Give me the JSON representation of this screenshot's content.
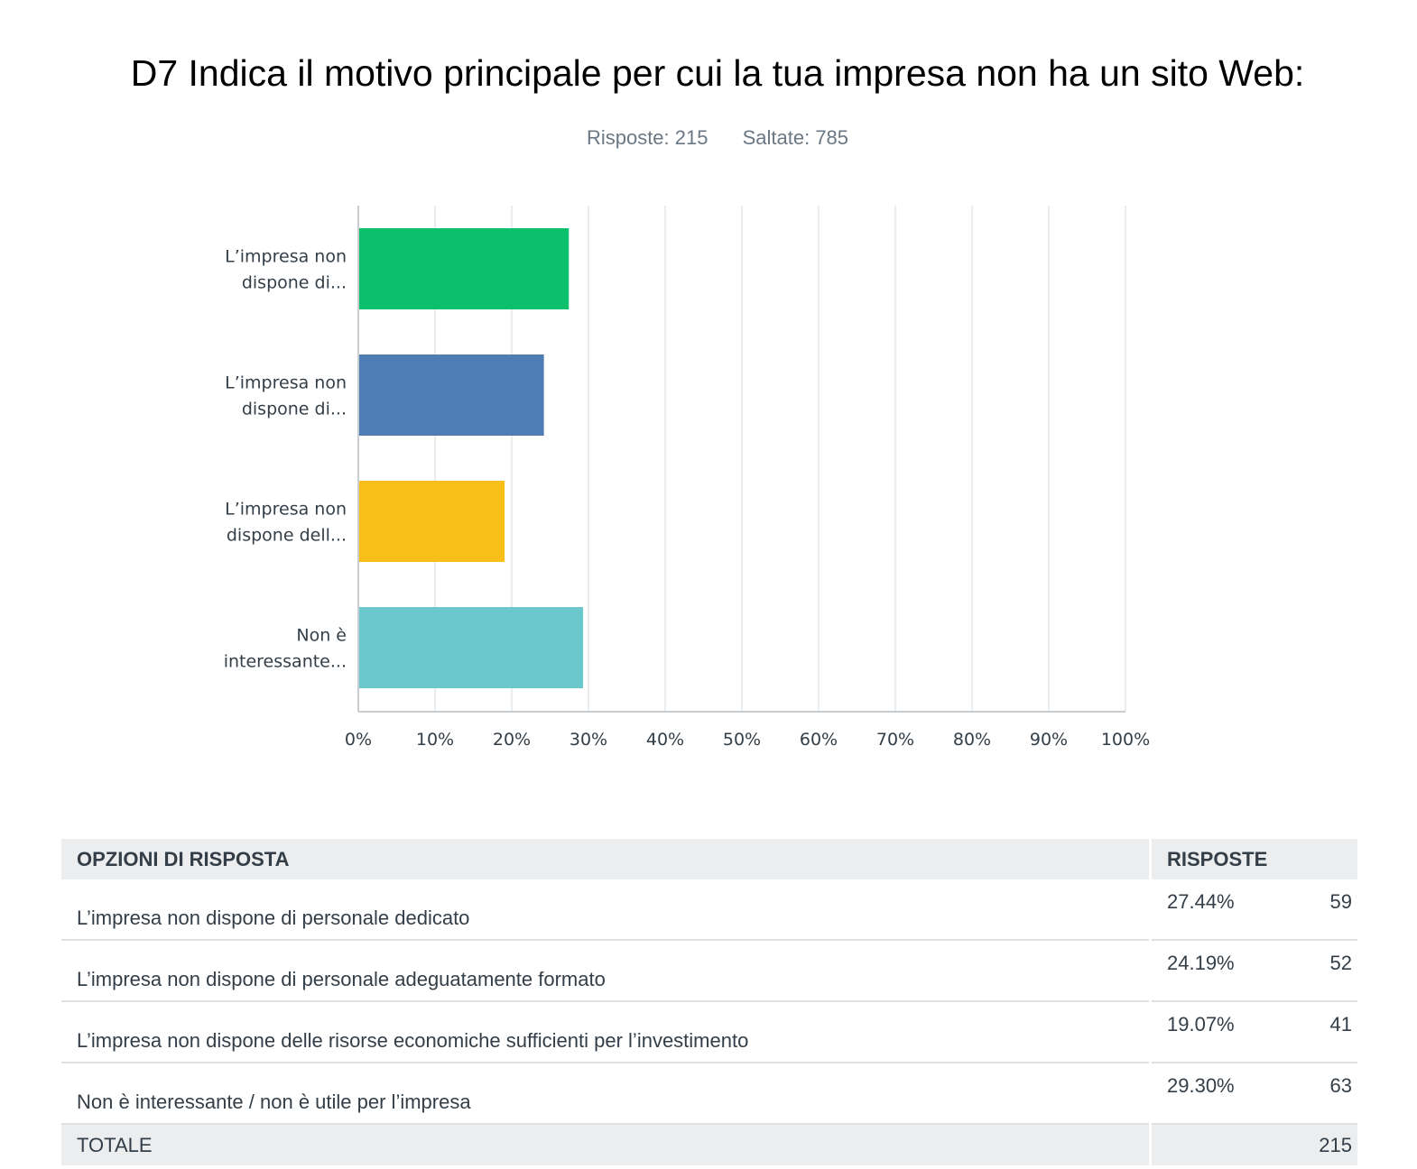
{
  "header": {
    "title": "D7 Indica il motivo principale per cui la tua impresa non ha un sito Web:",
    "answered": "Risposte: 215",
    "skipped": "Saltate: 785"
  },
  "chart_data": {
    "type": "bar",
    "orientation": "horizontal",
    "categories": [
      [
        "L’impresa non",
        "dispone di..."
      ],
      [
        "L’impresa non",
        "dispone di..."
      ],
      [
        "L’impresa non",
        "dispone dell..."
      ],
      [
        "Non è",
        "interessante..."
      ]
    ],
    "values": [
      27.44,
      24.19,
      19.07,
      29.3
    ],
    "colors": [
      "#0cbf6c",
      "#507cb6",
      "#f9be17",
      "#6bc8cd"
    ],
    "xlim": [
      0,
      100
    ],
    "xticks": [
      "0%",
      "10%",
      "20%",
      "30%",
      "40%",
      "50%",
      "60%",
      "70%",
      "80%",
      "90%",
      "100%"
    ],
    "grid": true
  },
  "table": {
    "headers": {
      "options": "OPZIONI DI RISPOSTA",
      "responses": "RISPOSTE"
    },
    "rows": [
      {
        "option": "L’impresa non dispone di personale dedicato",
        "percent": "27.44%",
        "count": "59"
      },
      {
        "option": "L’impresa non dispone di personale adeguatamente formato",
        "percent": "24.19%",
        "count": "52"
      },
      {
        "option": "L’impresa non dispone delle risorse economiche sufficienti per l’investimento",
        "percent": "19.07%",
        "count": "41"
      },
      {
        "option": "Non è interessante / non è utile per l’impresa",
        "percent": "29.30%",
        "count": "63"
      }
    ],
    "total_label": "TOTALE",
    "total_count": "215"
  }
}
